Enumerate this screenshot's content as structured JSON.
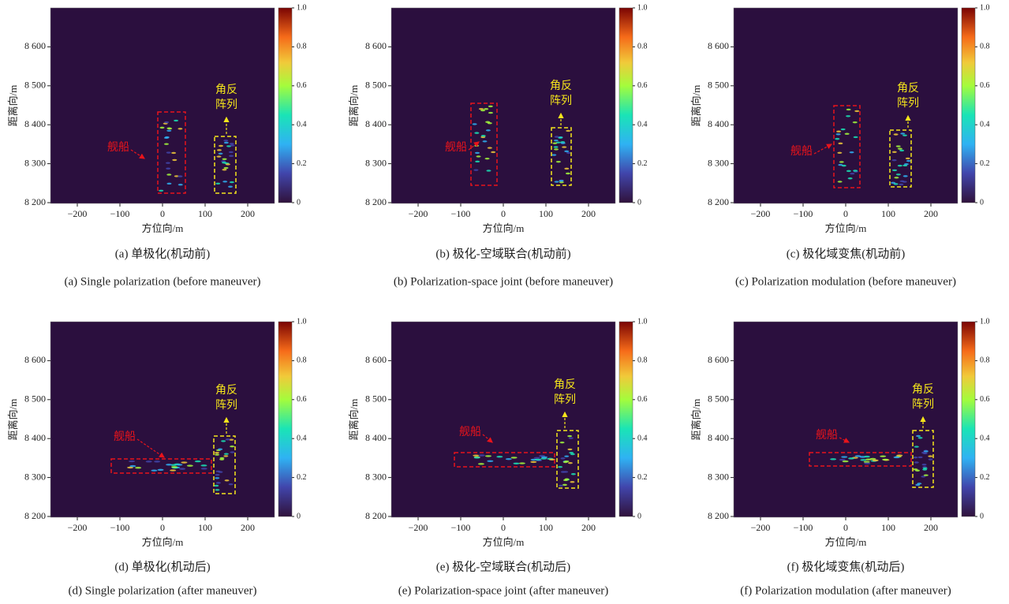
{
  "axes": {
    "xlabel": "方位向/m",
    "ylabel": "距离向/m",
    "xticks": [
      {
        "value": -200,
        "label": "−200"
      },
      {
        "value": -100,
        "label": "−100"
      },
      0,
      100,
      200
    ],
    "yticks": [
      {
        "value": 8200,
        "label": "8 200"
      },
      {
        "value": 8300,
        "label": "8 300"
      },
      {
        "value": 8400,
        "label": "8 400"
      },
      {
        "value": 8500,
        "label": "8 500"
      },
      {
        "value": 8600,
        "label": "8 600"
      }
    ]
  },
  "colorbar": {
    "ticks": [
      0,
      0.2,
      0.4,
      0.6,
      0.8,
      {
        "value": 1,
        "label": "1.0"
      }
    ]
  },
  "annotations": {
    "ship": "舰船",
    "array": [
      "角反",
      "阵列"
    ]
  },
  "panels": [
    {
      "caption_cn": "(a)  单极化(机动前)",
      "caption_en": "(a)  Single polarization (before maneuver)"
    },
    {
      "caption_cn": "(b)  极化-空域联合(机动前)",
      "caption_en": "(b)  Polarization-space joint (before maneuver)"
    },
    {
      "caption_cn": "(c)  极化域变焦(机动前)",
      "caption_en": "(c)  Polarization modulation (before maneuver)"
    },
    {
      "caption_cn": "(d)  单极化(机动后)",
      "caption_en": "(d)  Single polarization (after maneuver)"
    },
    {
      "caption_cn": "(e)  极化-空域联合(机动后)",
      "caption_en": "(e)  Polarization-space joint (after maneuver)"
    },
    {
      "caption_cn": "(f)  极化域变焦(机动后)",
      "caption_en": "(f)  Polarization modulation (after maneuver)"
    }
  ]
}
